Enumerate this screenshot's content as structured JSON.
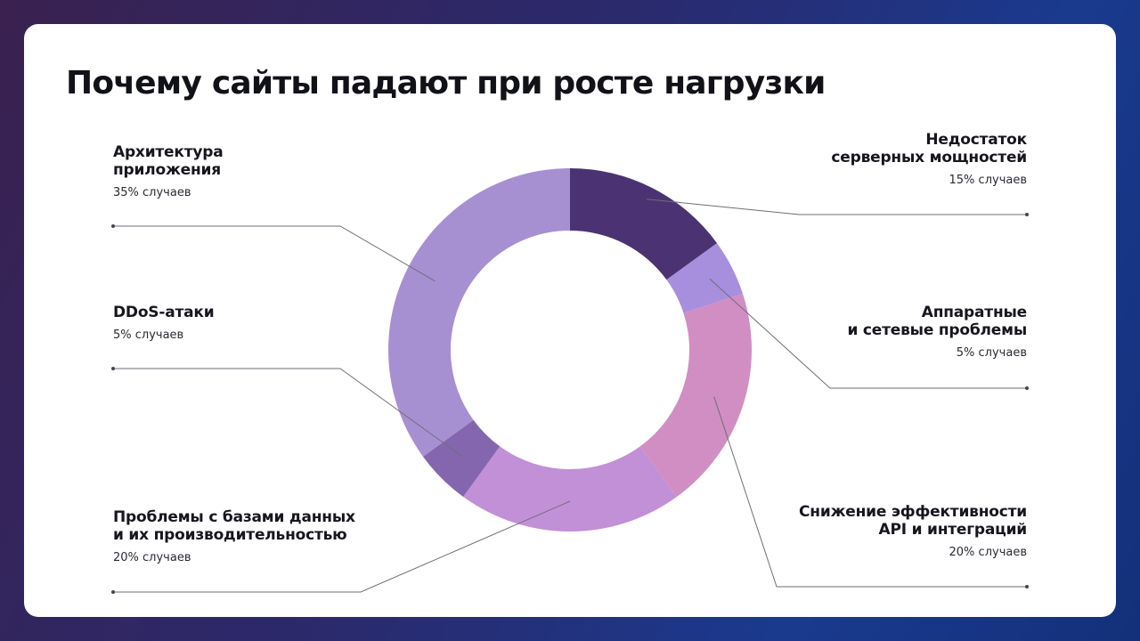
{
  "slide": {
    "title": "Почему сайты падают при росте нагрузки"
  },
  "chart_data": {
    "type": "pie",
    "title": "Почему сайты падают при росте нагрузки",
    "donut": true,
    "slices": [
      {
        "name": "Недостаток\nсерверных мощностей",
        "value": 15,
        "label": "15% случаев",
        "color": "#4b3373"
      },
      {
        "name": "Аппаратные\nи сетевые проблемы",
        "value": 5,
        "label": "5% случаев",
        "color": "#a88fde"
      },
      {
        "name": "Снижение эффективности\nAPI и интеграций",
        "value": 20,
        "label": "20% случаев",
        "color": "#d08ec2"
      },
      {
        "name": "Проблемы с базами данных\nи их производительностью",
        "value": 20,
        "label": "20% случаев",
        "color": "#c290d6"
      },
      {
        "name": "DDoS-атаки",
        "value": 5,
        "label": "5% случаев",
        "color": "#8466af"
      },
      {
        "name": "Архитектура\nприложения",
        "value": 35,
        "label": "35% случаев",
        "color": "#a790d2"
      }
    ]
  },
  "colors": {
    "connector": "#6e6e78"
  }
}
